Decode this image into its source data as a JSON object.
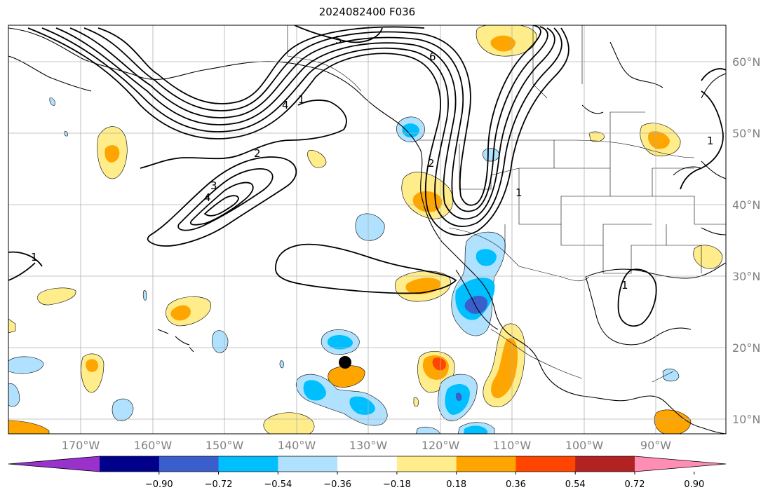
{
  "title": "2024082400 F036",
  "map": {
    "lat_labels": [
      "60°N",
      "50°N",
      "40°N",
      "30°N",
      "20°N",
      "10°N"
    ],
    "lon_labels": [
      "170°W",
      "160°W",
      "150°W",
      "140°W",
      "130°W",
      "120°W",
      "110°W",
      "100°W",
      "90°W"
    ],
    "lat_values": [
      60,
      50,
      40,
      30,
      20,
      10
    ],
    "lon_values": [
      -170,
      -160,
      -150,
      -140,
      -130,
      -120,
      -110,
      -100,
      -90
    ],
    "contour_labels": [
      "5",
      "6",
      "4",
      "1",
      "2",
      "3",
      "4",
      "1",
      "2",
      "1",
      "1",
      "1"
    ],
    "storm_marker": {
      "lon": -133.2,
      "lat": 17.6
    }
  },
  "colorbar": {
    "tick_labels": [
      "−0.90",
      "−0.72",
      "−0.54",
      "−0.36",
      "−0.18",
      "0.18",
      "0.36",
      "0.54",
      "0.72",
      "0.90"
    ],
    "colors": [
      "#9932cc",
      "#00008b",
      "#3a5fcd",
      "#00bfff",
      "#b0e2ff",
      "#ffffff",
      "#ffec8b",
      "#ffa500",
      "#ff4500",
      "#b22222",
      "#ff8db4"
    ],
    "extend": "both"
  }
}
